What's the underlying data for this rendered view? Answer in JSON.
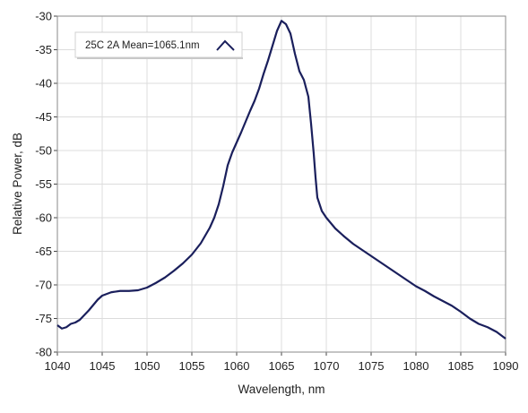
{
  "chart_data": {
    "type": "line",
    "title": "",
    "xlabel": "Wavelength, nm",
    "ylabel": "Relative Power, dB",
    "xlim": [
      1040,
      1090
    ],
    "ylim": [
      -80,
      -30
    ],
    "grid": true,
    "legend_placement": "top-left",
    "x_ticks": [
      "1040",
      "1045",
      "1050",
      "1055",
      "1060",
      "1065",
      "1070",
      "1075",
      "1080",
      "1085",
      "1090"
    ],
    "y_ticks": [
      "-30",
      "-35",
      "-40",
      "-45",
      "-50",
      "-55",
      "-60",
      "-65",
      "-70",
      "-75",
      "-80"
    ],
    "line_color": "#1a1f5c",
    "series": [
      {
        "name": "25C 2A Mean=1065.1nm",
        "x": [
          1040,
          1040.5,
          1041,
          1041.5,
          1042,
          1042.5,
          1043,
          1043.5,
          1044,
          1044.5,
          1045,
          1046,
          1047,
          1048,
          1049,
          1050,
          1051,
          1052,
          1053,
          1054,
          1055,
          1056,
          1057,
          1057.5,
          1058,
          1058.5,
          1059,
          1059.5,
          1060,
          1060.5,
          1061,
          1061.5,
          1062,
          1062.5,
          1063,
          1063.5,
          1064,
          1064.5,
          1065,
          1065.5,
          1066,
          1066.5,
          1067,
          1067.5,
          1068,
          1068.3,
          1068.6,
          1068.8,
          1069,
          1069.5,
          1070,
          1071,
          1072,
          1073,
          1074,
          1075,
          1076,
          1077,
          1078,
          1079,
          1080,
          1081,
          1082,
          1083,
          1084,
          1085,
          1086,
          1087,
          1088,
          1089,
          1090
        ],
        "y": [
          -76.0,
          -76.5,
          -76.3,
          -75.8,
          -75.6,
          -75.2,
          -74.5,
          -73.8,
          -73.0,
          -72.2,
          -71.6,
          -71.1,
          -70.9,
          -70.9,
          -70.8,
          -70.4,
          -69.7,
          -68.9,
          -67.9,
          -66.8,
          -65.5,
          -63.8,
          -61.5,
          -60.0,
          -58.0,
          -55.3,
          -52.2,
          -50.3,
          -48.8,
          -47.3,
          -45.7,
          -44.1,
          -42.6,
          -40.8,
          -38.6,
          -36.6,
          -34.4,
          -32.2,
          -30.7,
          -31.2,
          -32.6,
          -35.6,
          -38.2,
          -39.5,
          -42.0,
          -46.0,
          -50.5,
          -54.0,
          -57.0,
          -59.0,
          -60.0,
          -61.6,
          -62.8,
          -63.9,
          -64.8,
          -65.7,
          -66.6,
          -67.5,
          -68.4,
          -69.3,
          -70.2,
          -70.9,
          -71.7,
          -72.4,
          -73.1,
          -74.0,
          -75.0,
          -75.8,
          -76.3,
          -77.0,
          -78.0
        ]
      }
    ]
  }
}
